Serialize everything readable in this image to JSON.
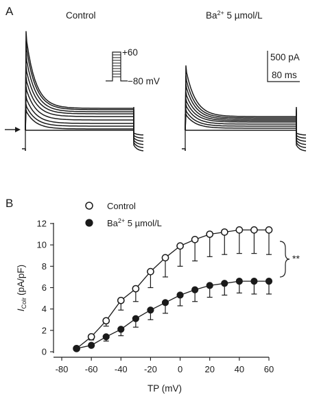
{
  "panel_a": {
    "label": "A",
    "condition_control": "Control",
    "condition_ba_prefix": "Ba",
    "condition_ba_sup": "2+",
    "condition_ba_suffix": " 5 µmol/L",
    "protocol_top": "+60",
    "protocol_bottom": "−80 mV",
    "scale_current": "500 pA",
    "scale_time": "80 ms"
  },
  "chart_data": {
    "type": "line",
    "panel_label": "B",
    "title": "",
    "xlabel": "TP (mV)",
    "ylabel_main": "I",
    "ylabel_sub": "Colr",
    "ylabel_unit": "(pA/pF)",
    "xlim": [
      -80,
      60
    ],
    "ylim": [
      0,
      12
    ],
    "xticks": [
      -80,
      -60,
      -40,
      -20,
      0,
      20,
      40,
      60
    ],
    "yticks": [
      0,
      2,
      4,
      6,
      8,
      10,
      12
    ],
    "legend_position": "top-left",
    "x": [
      -70,
      -60,
      -50,
      -40,
      -30,
      -20,
      -10,
      0,
      10,
      20,
      30,
      40,
      50,
      60
    ],
    "series": [
      {
        "name": "Control",
        "marker": "open-circle",
        "values": [
          0.3,
          1.4,
          2.9,
          4.8,
          5.9,
          7.5,
          8.8,
          9.9,
          10.5,
          11.0,
          11.2,
          11.4,
          11.4,
          11.4
        ],
        "error": [
          0.0,
          0.3,
          0.5,
          0.9,
          1.2,
          1.5,
          1.8,
          1.9,
          2.0,
          2.1,
          2.1,
          2.2,
          2.2,
          2.3
        ]
      },
      {
        "name_prefix": "Ba",
        "name_sup": "2+",
        "name_suffix": " 5 µmol/L",
        "marker": "filled-circle",
        "values": [
          0.3,
          0.6,
          1.4,
          2.1,
          3.1,
          3.9,
          4.6,
          5.3,
          5.8,
          6.2,
          6.4,
          6.6,
          6.6,
          6.6
        ],
        "error": [
          0.0,
          0.2,
          0.4,
          0.6,
          0.8,
          0.9,
          1.0,
          1.0,
          1.1,
          1.1,
          1.1,
          1.1,
          1.2,
          1.2
        ]
      }
    ],
    "significance": "**"
  }
}
